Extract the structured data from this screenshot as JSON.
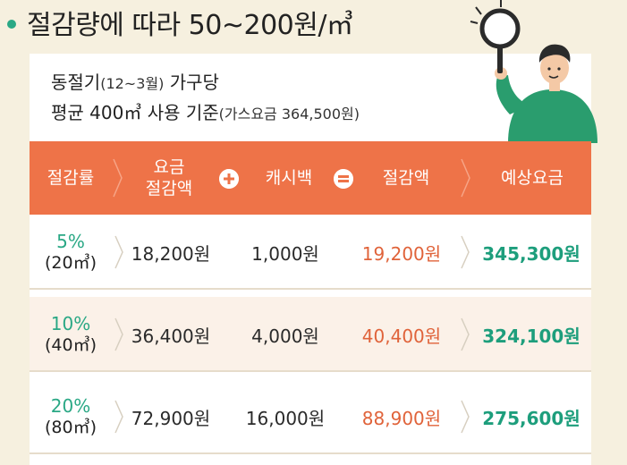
{
  "title": {
    "text": "절감량에 따라 50~200원/㎥"
  },
  "subtitle": {
    "line1_main": "동절기",
    "line1_paren": "(12~3월)",
    "line1_tail": " 가구당",
    "line2_main": "평균 400㎥ 사용 기준",
    "line2_paren": "(가스요금 364,500원)"
  },
  "table": {
    "headers": {
      "rate": "절감률",
      "saving_line1": "요금",
      "saving_line2": "절감액",
      "cashback": "캐시백",
      "total": "절감액",
      "expected": "예상요금"
    },
    "rows": [
      {
        "pct": "5%",
        "vol": "(20㎥)",
        "saving": "18,200원",
        "cashback": "1,000원",
        "total": "19,200원",
        "expected": "345,300원"
      },
      {
        "pct": "10%",
        "vol": "(40㎥)",
        "saving": "36,400원",
        "cashback": "4,000원",
        "total": "40,400원",
        "expected": "324,100원"
      },
      {
        "pct": "20%",
        "vol": "(80㎥)",
        "saving": "72,900원",
        "cashback": "16,000원",
        "total": "88,900원",
        "expected": "275,600원"
      }
    ]
  },
  "colors": {
    "header_bg": "#ee7348",
    "accent_green": "#2aa885",
    "accent_orange": "#e0633a"
  },
  "icons": {
    "plus": "plus-circle-icon",
    "equals": "equals-circle-icon",
    "chevron": "chevron-right-icon",
    "figure": "person-with-magnifier-illustration"
  }
}
